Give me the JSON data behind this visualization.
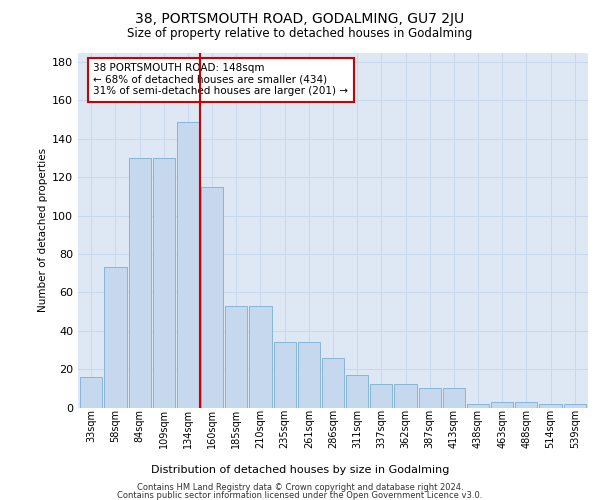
{
  "title": "38, PORTSMOUTH ROAD, GODALMING, GU7 2JU",
  "subtitle": "Size of property relative to detached houses in Godalming",
  "xlabel": "Distribution of detached houses by size in Godalming",
  "ylabel": "Number of detached properties",
  "categories": [
    "33sqm",
    "58sqm",
    "84sqm",
    "109sqm",
    "134sqm",
    "160sqm",
    "185sqm",
    "210sqm",
    "235sqm",
    "261sqm",
    "286sqm",
    "311sqm",
    "337sqm",
    "362sqm",
    "387sqm",
    "413sqm",
    "438sqm",
    "463sqm",
    "488sqm",
    "514sqm",
    "539sqm"
  ],
  "values": [
    16,
    73,
    130,
    130,
    149,
    115,
    53,
    53,
    34,
    34,
    26,
    17,
    12,
    12,
    10,
    10,
    2,
    3,
    3,
    2,
    2
  ],
  "bar_color": "#c5d8ed",
  "bar_edge_color": "#7aafd4",
  "vline_color": "#cc0000",
  "annotation_text": "38 PORTSMOUTH ROAD: 148sqm\n← 68% of detached houses are smaller (434)\n31% of semi-detached houses are larger (201) →",
  "annotation_box_facecolor": "#ffffff",
  "annotation_box_edge_color": "#cc0000",
  "ylim": [
    0,
    185
  ],
  "yticks": [
    0,
    20,
    40,
    60,
    80,
    100,
    120,
    140,
    160,
    180
  ],
  "footer1": "Contains HM Land Registry data © Crown copyright and database right 2024.",
  "footer2": "Contains public sector information licensed under the Open Government Licence v3.0.",
  "grid_color": "#c8d8ec",
  "background_color": "#dde8f4"
}
